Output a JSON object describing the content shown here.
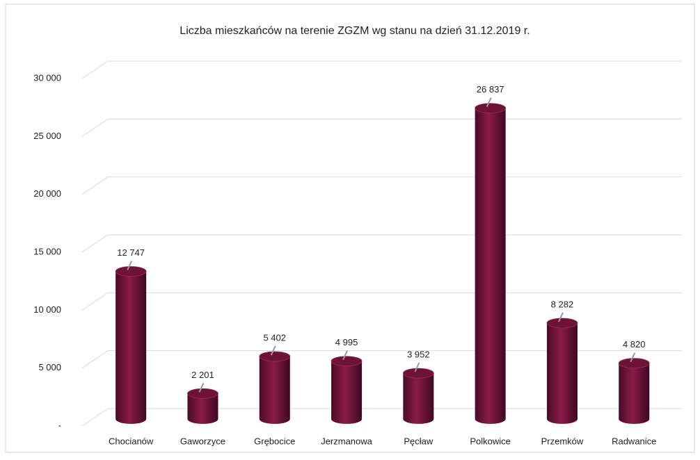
{
  "chart_data": {
    "type": "bar",
    "title": "Liczba mieszkańców na terenie ZGZM wg stanu na dzień 31.12.2019 r.",
    "categories": [
      "Chocianów",
      "Gaworzyce",
      "Grębocice",
      "Jerzmanowa",
      "Pęcław",
      "Polkowice",
      "Przemków",
      "Radwanice"
    ],
    "values": [
      12747,
      2201,
      5402,
      4995,
      3952,
      26837,
      8282,
      4820
    ],
    "value_labels": [
      "12 747",
      "2 201",
      "5 402",
      "4 995",
      "3 952",
      "26 837",
      "8 282",
      "4 820"
    ],
    "color": "#6e1238",
    "ylim": [
      0,
      30000
    ],
    "yticks": [
      {
        "value": 0,
        "label": "-"
      },
      {
        "value": 5000,
        "label": "5 000"
      },
      {
        "value": 10000,
        "label": "10 000"
      },
      {
        "value": 15000,
        "label": "15 000"
      },
      {
        "value": 20000,
        "label": "20 000"
      },
      {
        "value": 25000,
        "label": "25 000"
      },
      {
        "value": 30000,
        "label": "30 000"
      }
    ],
    "grid": true
  }
}
